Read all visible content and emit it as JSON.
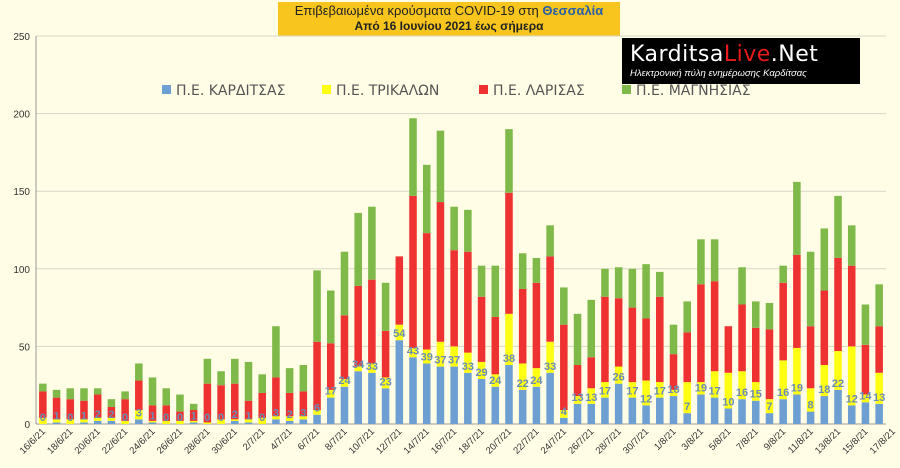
{
  "header": {
    "title_prefix": "Επιβεβαιωμένα κρούσματα COVID-19 στη",
    "title_highlight": "Θεσσαλία",
    "subtitle": "Από 16 Ιουνίου 2021 έως σήμερα"
  },
  "logo": {
    "name_a": "Karditsa",
    "name_b": "Live",
    "name_c": ".Net",
    "tagline": "Ηλεκτρονική πύλη ενημέρωσης Καρδίτσας"
  },
  "colors": {
    "karditsa": "#6e9fd3",
    "trikala": "#ffff14",
    "larisa": "#ee3131",
    "magnisia": "#7fb949",
    "grid": "#d7d7c8",
    "axis": "#9a9a9a"
  },
  "chart_data": {
    "type": "bar",
    "stacked": true,
    "legend_position": "top",
    "grid": true,
    "ylim": [
      0,
      250
    ],
    "yticks": [
      0,
      50,
      100,
      150,
      200,
      250
    ],
    "x_tick_labels": [
      "16/6/21",
      "18/6/21",
      "20/6/21",
      "22/6/21",
      "24/6/21",
      "26/6/21",
      "28/6/21",
      "30/6/21",
      "2/7/21",
      "4/7/21",
      "6/7/21",
      "8/7/21",
      "10/7/21",
      "12/7/21",
      "14/7/21",
      "16/7/21",
      "18/7/21",
      "20/7/21",
      "22/7/21",
      "24/7/21",
      "26/7/21",
      "28/7/21",
      "30/7/21",
      "1/8/21",
      "3/8/21",
      "5/8/21",
      "7/8/21",
      "9/8/21",
      "11/8/21",
      "13/8/21",
      "15/8/21",
      "17/8/21"
    ],
    "series": [
      {
        "name": "Π.Ε. ΚΑΡΔΙΤΣΑΣ",
        "values": [
          0,
          1,
          0,
          1,
          2,
          2,
          0,
          3,
          1,
          0,
          0,
          1,
          0,
          0,
          2,
          1,
          0,
          3,
          2,
          3,
          6,
          17,
          24,
          34,
          33,
          23,
          54,
          43,
          39,
          37,
          37,
          33,
          29,
          24,
          38,
          22,
          24,
          33,
          4,
          13,
          13,
          17,
          26,
          17,
          12,
          17,
          18,
          7,
          19,
          17,
          10,
          16,
          15,
          7,
          16,
          19,
          8,
          18,
          22,
          12,
          14,
          13
        ]
      },
      {
        "name": "Π.Ε. ΤΡΙΚΑΛΩΝ",
        "values": [
          4,
          2,
          3,
          2,
          2,
          2,
          2,
          6,
          1,
          2,
          2,
          1,
          1,
          3,
          1,
          2,
          4,
          2,
          3,
          2,
          3,
          5,
          5,
          3,
          6,
          7,
          10,
          6,
          9,
          16,
          13,
          13,
          11,
          8,
          33,
          17,
          12,
          20,
          5,
          5,
          10,
          10,
          11,
          10,
          16,
          10,
          4,
          20,
          8,
          17,
          23,
          18,
          12,
          9,
          25,
          30,
          15,
          20,
          25,
          38,
          5,
          20
        ]
      },
      {
        "name": "Π.Ε. ΛΑΡΙΣΑΣ",
        "values": [
          17,
          14,
          13,
          12,
          15,
          7,
          14,
          19,
          10,
          10,
          6,
          7,
          25,
          22,
          23,
          12,
          16,
          25,
          15,
          16,
          44,
          30,
          41,
          52,
          54,
          30,
          44,
          98,
          75,
          90,
          62,
          65,
          42,
          37,
          78,
          48,
          55,
          55,
          55,
          20,
          20,
          55,
          44,
          48,
          40,
          55,
          23,
          32,
          63,
          58,
          30,
          43,
          35,
          45,
          50,
          60,
          40,
          48,
          60,
          52,
          32,
          30
        ]
      },
      {
        "name": "Π.Ε. ΜΑΓΝΗΣΙΑΣ",
        "values": [
          5,
          5,
          7,
          8,
          4,
          5,
          5,
          11,
          18,
          11,
          11,
          4,
          16,
          9,
          16,
          25,
          12,
          33,
          16,
          17,
          46,
          34,
          41,
          47,
          47,
          31,
          0,
          50,
          44,
          46,
          28,
          27,
          20,
          33,
          41,
          23,
          16,
          20,
          24,
          33,
          37,
          18,
          20,
          25,
          35,
          16,
          19,
          20,
          29,
          27,
          0,
          24,
          17,
          17,
          11,
          47,
          48,
          40,
          40,
          26,
          26,
          27
        ]
      }
    ]
  }
}
